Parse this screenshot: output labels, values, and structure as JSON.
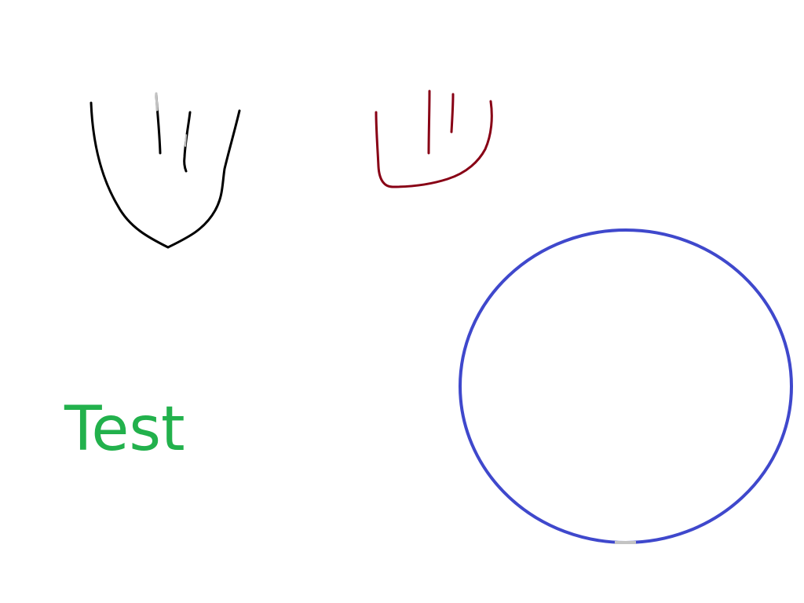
{
  "canvas": {
    "background": "#ffffff",
    "text": "Test",
    "colors": {
      "text": "#22b14c",
      "black_stroke": "#000000",
      "red_stroke": "#880015",
      "blue_stroke": "#3f48cc",
      "grey_mark": "#c3c3c3"
    }
  }
}
